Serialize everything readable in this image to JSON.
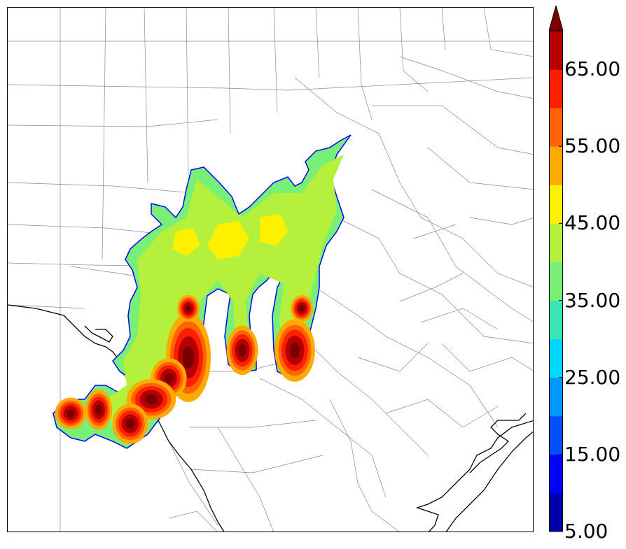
{
  "colorbar": {
    "levels": [
      5,
      10,
      15,
      20,
      25,
      30,
      35,
      40,
      45,
      50,
      55,
      60,
      65,
      70
    ],
    "colors": [
      "#0000aa",
      "#0000ff",
      "#0050ff",
      "#0096ff",
      "#00d7ff",
      "#3ce6b4",
      "#78f078",
      "#b4f03c",
      "#fff000",
      "#ffaa00",
      "#ff6400",
      "#ff1e00",
      "#b40000"
    ],
    "extend_color": "#7a0000",
    "labels": [
      "5.00",
      "15.00",
      "25.00",
      "35.00",
      "45.00",
      "55.00",
      "65.00"
    ],
    "label_values": [
      5,
      15,
      25,
      35,
      45,
      55,
      65
    ]
  },
  "map": {
    "background": "#ffffff",
    "county_line_color": "#888888",
    "coast_line_color": "#000000",
    "field_outline_color": "#0000ff"
  }
}
